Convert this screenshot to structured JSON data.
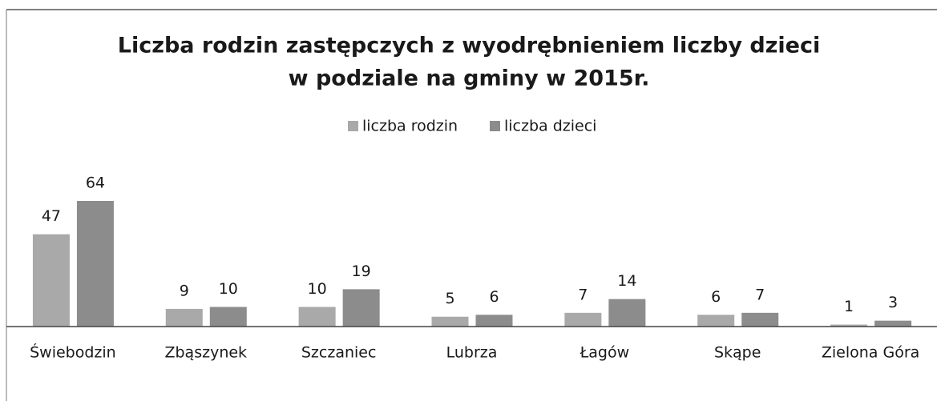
{
  "chart_data": {
    "type": "bar",
    "title": [
      "Liczba rodzin zastępczych z wyodrębnieniem liczby dzieci",
      "w podziale na gminy w 2015r."
    ],
    "categories": [
      "Świebodzin",
      "Zbąszynek",
      "Szczaniec",
      "Lubrza",
      "Łagów",
      "Skąpe",
      "Zielona Góra"
    ],
    "series": [
      {
        "name": "liczba rodzin",
        "color": "#a9a9a9",
        "values": [
          47,
          9,
          10,
          5,
          7,
          6,
          1
        ]
      },
      {
        "name": "liczba dzieci",
        "color": "#8c8c8c",
        "values": [
          64,
          10,
          19,
          6,
          14,
          7,
          3
        ]
      }
    ],
    "legend": "top"
  }
}
